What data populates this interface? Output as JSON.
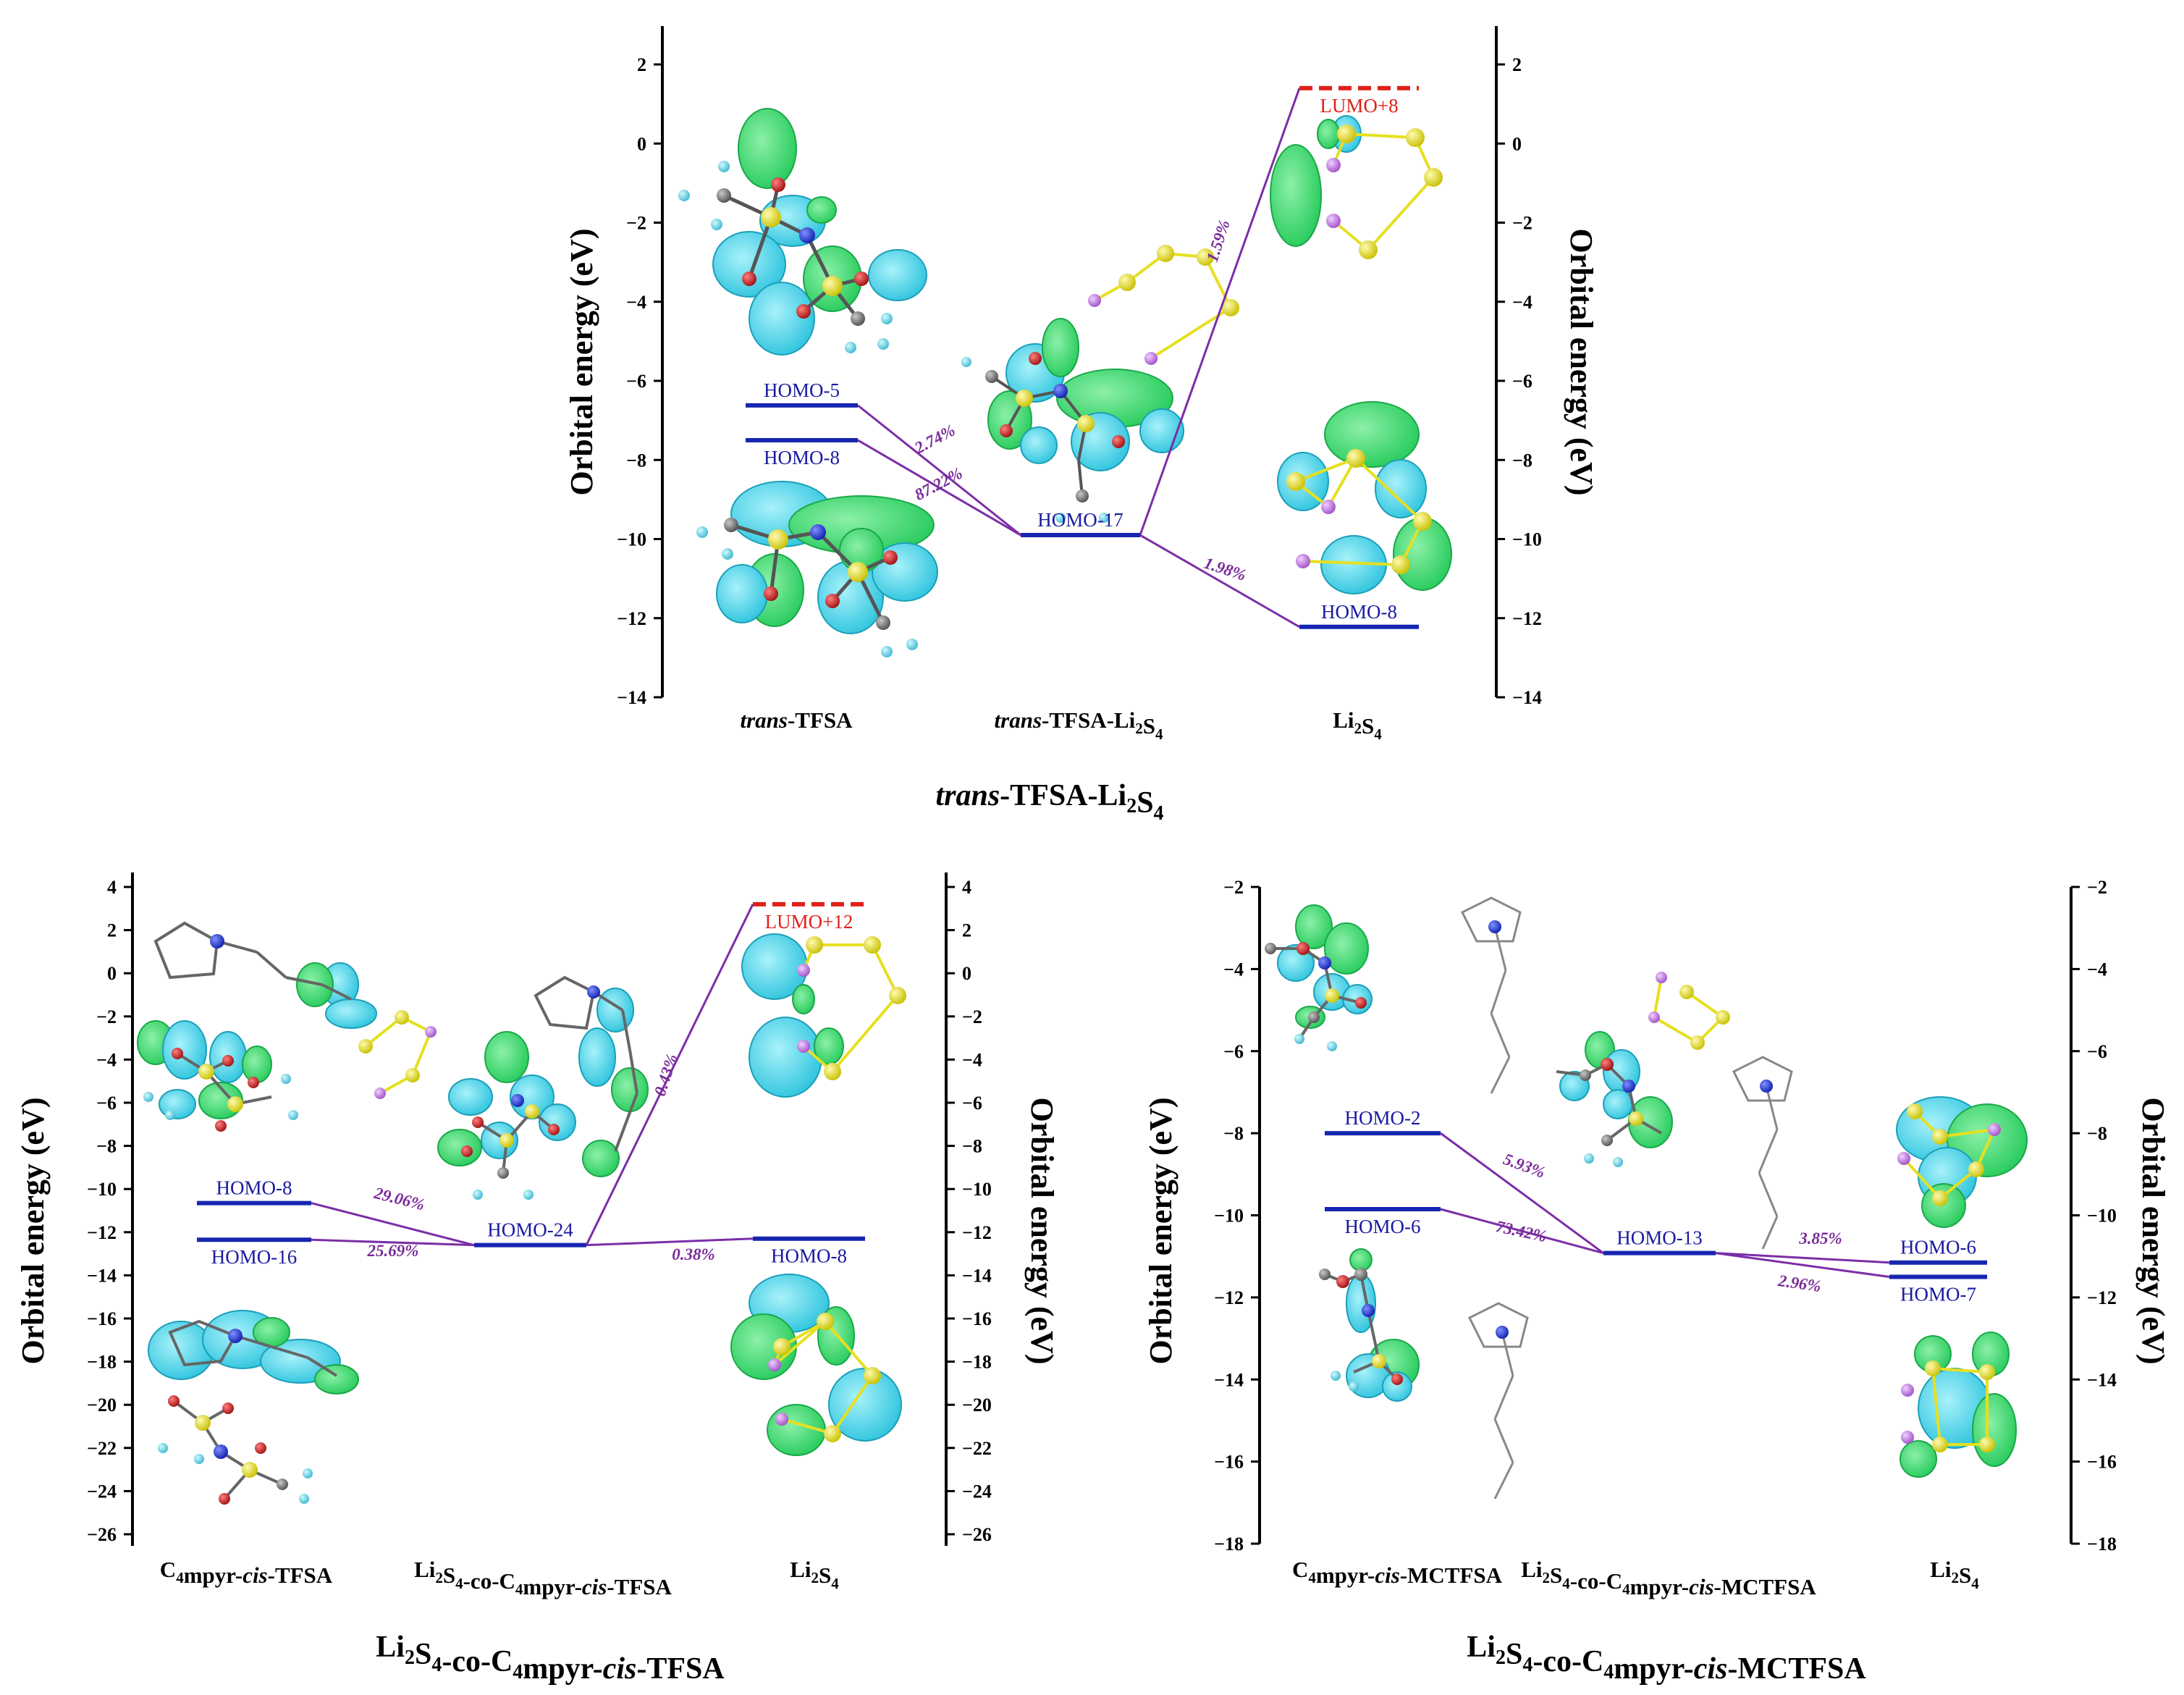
{
  "chart_data": [
    {
      "type": "energy-level-diagram",
      "caption": {
        "pre": "",
        "it": "trans",
        "post": "-TFSA-Li",
        "sub": "2",
        "post2": "S",
        "sub2": "4",
        "post3": ""
      },
      "ylabel": "Orbital energy (eV)",
      "ylabel_right": "Orbital energy (eV)",
      "ylim": [
        -14,
        3
      ],
      "yticks": [
        2,
        0,
        -2,
        -4,
        -6,
        -8,
        -10,
        -12,
        -14
      ],
      "columns": [
        {
          "label": [
            {
              "t": "trans",
              "i": true
            },
            {
              "t": "-TFSA"
            }
          ]
        },
        {
          "label": [
            {
              "t": "trans",
              "i": true
            },
            {
              "t": "-TFSA-Li"
            },
            {
              "t": "2",
              "s": true
            },
            {
              "t": "S"
            },
            {
              "t": "4",
              "s": true
            }
          ]
        },
        {
          "label": [
            {
              "t": "Li"
            },
            {
              "t": "2",
              "s": true
            },
            {
              "t": "S"
            },
            {
              "t": "4",
              "s": true
            }
          ]
        }
      ],
      "levels": [
        {
          "name": "HOMO-5",
          "energy": -6.62,
          "column": 0,
          "label_pos": "above"
        },
        {
          "name": "HOMO-8",
          "energy": -7.5,
          "column": 0,
          "label_pos": "below"
        },
        {
          "name": "HOMO-17",
          "energy": -9.9,
          "column": 1,
          "label_pos": "above"
        },
        {
          "name": "LUMO+8",
          "energy": 1.4,
          "column": 2,
          "label_pos": "below",
          "unoccupied": true
        },
        {
          "name": "HOMO-8",
          "energy": -12.22,
          "column": 2,
          "label_pos": "above"
        }
      ],
      "contributions": [
        {
          "from": 0,
          "to": 2,
          "percent": "2.74%"
        },
        {
          "from": 1,
          "to": 2,
          "percent": "87.22%"
        },
        {
          "from": 2,
          "to": 3,
          "percent": "1.59%"
        },
        {
          "from": 2,
          "to": 4,
          "percent": "1.98%"
        }
      ]
    },
    {
      "type": "energy-level-diagram",
      "caption": {
        "pre": "Li",
        "sub": "2",
        "post": "S",
        "sub2": "4",
        "post2": "-co-C",
        "sub3": "4",
        "post3": "mpyr-",
        "it": "cis",
        "post4": "-TFSA"
      },
      "ylabel": "Orbital energy (eV)",
      "ylabel_right": "Orbital energy (eV)",
      "ylim": [
        -27,
        4
      ],
      "yticks": [
        4,
        2,
        0,
        -2,
        -4,
        -6,
        -8,
        -10,
        -12,
        -14,
        -16,
        -18,
        -20,
        -22,
        -24,
        -26
      ],
      "columns": [
        {
          "label": [
            {
              "t": "C"
            },
            {
              "t": "4",
              "s": true
            },
            {
              "t": "mpyr-"
            },
            {
              "t": "cis",
              "i": true
            },
            {
              "t": "-TFSA"
            }
          ]
        },
        {
          "label": [
            {
              "t": "Li"
            },
            {
              "t": "2",
              "s": true
            },
            {
              "t": "S"
            },
            {
              "t": "4",
              "s": true
            },
            {
              "t": "-co-C"
            },
            {
              "t": "4",
              "s": true
            },
            {
              "t": "mpyr-"
            },
            {
              "t": "cis",
              "i": true
            },
            {
              "t": "-TFSA"
            }
          ]
        },
        {
          "label": [
            {
              "t": "Li"
            },
            {
              "t": "2",
              "s": true
            },
            {
              "t": "S"
            },
            {
              "t": "4",
              "s": true
            }
          ]
        }
      ],
      "levels": [
        {
          "name": "HOMO-8",
          "energy": -10.65,
          "column": 0,
          "label_pos": "above"
        },
        {
          "name": "HOMO-16",
          "energy": -12.35,
          "column": 0,
          "label_pos": "below"
        },
        {
          "name": "HOMO-24",
          "energy": -12.6,
          "column": 1,
          "label_pos": "above"
        },
        {
          "name": "LUMO+12",
          "energy": 3.2,
          "column": 2,
          "label_pos": "below",
          "unoccupied": true
        },
        {
          "name": "HOMO-8",
          "energy": -12.3,
          "column": 2,
          "label_pos": "below"
        }
      ],
      "contributions": [
        {
          "from": 0,
          "to": 2,
          "percent": "29.06%"
        },
        {
          "from": 1,
          "to": 2,
          "percent": "25.69%"
        },
        {
          "from": 2,
          "to": 3,
          "percent": "0.43%"
        },
        {
          "from": 2,
          "to": 4,
          "percent": "0.38%"
        }
      ]
    },
    {
      "type": "energy-level-diagram",
      "caption": {
        "pre": "Li",
        "sub": "2",
        "post": "S",
        "sub2": "4",
        "post2": "-co-C",
        "sub3": "4",
        "post3": "mpyr-",
        "it": "cis",
        "post4": "-MCTFSA"
      },
      "ylabel": "Orbital energy (eV)",
      "ylabel_right": "Orbital energy (eV)",
      "ylim": [
        -18,
        -2
      ],
      "yticks": [
        -2,
        -4,
        -6,
        -8,
        -10,
        -12,
        -14,
        -16,
        -18
      ],
      "columns": [
        {
          "label": [
            {
              "t": "C"
            },
            {
              "t": "4",
              "s": true
            },
            {
              "t": "mpyr-"
            },
            {
              "t": "cis",
              "i": true
            },
            {
              "t": "-MCTFSA"
            }
          ]
        },
        {
          "label": [
            {
              "t": "Li"
            },
            {
              "t": "2",
              "s": true
            },
            {
              "t": "S"
            },
            {
              "t": "4",
              "s": true
            },
            {
              "t": "-co-C"
            },
            {
              "t": "4",
              "s": true
            },
            {
              "t": "mpyr-"
            },
            {
              "t": "cis",
              "i": true
            },
            {
              "t": "-MCTFSA"
            }
          ]
        },
        {
          "label": [
            {
              "t": "Li"
            },
            {
              "t": "2",
              "s": true
            },
            {
              "t": "S"
            },
            {
              "t": "4",
              "s": true
            }
          ]
        }
      ],
      "levels": [
        {
          "name": "HOMO-2",
          "energy": -8.0,
          "column": 0,
          "label_pos": "above"
        },
        {
          "name": "HOMO-6",
          "energy": -9.85,
          "column": 0,
          "label_pos": "below"
        },
        {
          "name": "HOMO-13",
          "energy": -10.92,
          "column": 1,
          "label_pos": "above"
        },
        {
          "name": "HOMO-6",
          "energy": -11.15,
          "column": 2,
          "label_pos": "above"
        },
        {
          "name": "HOMO-7",
          "energy": -11.5,
          "column": 2,
          "label_pos": "below"
        }
      ],
      "contributions": [
        {
          "from": 0,
          "to": 2,
          "percent": "5.93%"
        },
        {
          "from": 1,
          "to": 2,
          "percent": "73.42%"
        },
        {
          "from": 2,
          "to": 3,
          "percent": "3.85%"
        },
        {
          "from": 2,
          "to": 4,
          "percent": "2.96%"
        }
      ]
    }
  ],
  "colors": {
    "occupied_level": "#1726b0",
    "unoccupied_level": "#e0201a",
    "connector": "#7b2ea8",
    "percent_label": "#7a2a9a",
    "orbital_positive": "#2fd86a",
    "orbital_negative": "#3ed0e8",
    "atom_sulfur": "#e6e020",
    "atom_lithium": "#c070e0",
    "atom_oxygen": "#d02020",
    "atom_nitrogen": "#1030e0",
    "atom_carbon": "#7a7a7a",
    "atom_fluorine": "#60d8e8"
  }
}
